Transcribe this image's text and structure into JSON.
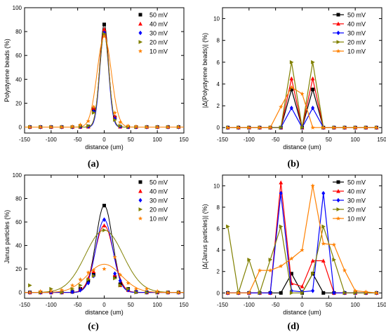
{
  "panels": [
    {
      "caption": "(a)"
    },
    {
      "caption": "(b)"
    },
    {
      "caption": "(c)"
    },
    {
      "caption": "(d)"
    }
  ],
  "chart_data": [
    {
      "type": "scatter",
      "title": "",
      "xlabel": "distance (um)",
      "ylabel": "Polystyrene beads (%)",
      "xlim": [
        -150,
        150
      ],
      "ylim": [
        -5,
        100
      ],
      "xticks": [
        -150,
        -100,
        -50,
        0,
        50,
        100,
        150
      ],
      "yticks": [
        0,
        20,
        40,
        60,
        80,
        100
      ],
      "legend_position": "top-right",
      "fit_lines": true,
      "x": [
        -140,
        -120,
        -100,
        -80,
        -60,
        -45,
        -30,
        -20,
        0,
        20,
        30,
        45,
        60,
        80,
        100,
        120,
        140
      ],
      "series": [
        {
          "name": "50 mV",
          "color": "#000000",
          "marker": "square",
          "values": [
            0,
            0,
            0,
            0,
            0,
            0.2,
            0.5,
            15,
            86,
            8,
            0.3,
            0.1,
            0,
            0,
            0,
            0,
            0
          ]
        },
        {
          "name": "40 mV",
          "color": "#ff0000",
          "marker": "triangle-up",
          "values": [
            0,
            0,
            0,
            0,
            0,
            0.1,
            0.3,
            16,
            82,
            9,
            0.3,
            0.1,
            0,
            0,
            0,
            0,
            0
          ]
        },
        {
          "name": "30 mV",
          "color": "#0000ff",
          "marker": "diamond",
          "values": [
            0,
            0,
            0,
            0,
            0,
            0.2,
            0.5,
            13,
            79,
            7,
            0.5,
            0.1,
            0,
            0,
            0,
            0,
            0
          ]
        },
        {
          "name": "20 mV",
          "color": "#808000",
          "marker": "triangle-right",
          "values": [
            0,
            0,
            0,
            0,
            0,
            0.5,
            1,
            12,
            78,
            6,
            1,
            0.3,
            0,
            0,
            0,
            0,
            0
          ]
        },
        {
          "name": "10 mV",
          "color": "#ff8000",
          "marker": "star",
          "values": [
            0,
            0,
            0,
            0,
            0.5,
            2,
            5,
            17,
            76,
            12,
            4,
            1,
            0.5,
            0,
            0,
            0,
            0
          ]
        }
      ]
    },
    {
      "type": "line",
      "title": "",
      "xlabel": "distance (um)",
      "ylabel": "|Δ(Polystyrene beads)| (%)",
      "xlim": [
        -150,
        150
      ],
      "ylim": [
        -0.5,
        11
      ],
      "xticks": [
        -150,
        -100,
        -50,
        0,
        50,
        100,
        150
      ],
      "yticks": [
        0,
        2,
        4,
        6,
        8,
        10
      ],
      "legend_position": "top-right",
      "x": [
        -140,
        -120,
        -100,
        -80,
        -60,
        -40,
        -20,
        0,
        20,
        40,
        60,
        80,
        100,
        120,
        140
      ],
      "series": [
        {
          "name": "50 mV",
          "color": "#000000",
          "marker": "square",
          "values": [
            0,
            0,
            0,
            0,
            0,
            0,
            3.5,
            0,
            3.5,
            0,
            0,
            0,
            0,
            0,
            0
          ]
        },
        {
          "name": "40 mV",
          "color": "#ff0000",
          "marker": "triangle-up",
          "values": [
            0,
            0,
            0,
            0,
            0,
            0,
            4.5,
            0,
            4.5,
            0,
            0,
            0,
            0,
            0,
            0
          ]
        },
        {
          "name": "30 mV",
          "color": "#0000ff",
          "marker": "diamond",
          "values": [
            0,
            0,
            0,
            0,
            0,
            0,
            1.8,
            0,
            1.8,
            0,
            0,
            0,
            0,
            0,
            0
          ]
        },
        {
          "name": "20 mV",
          "color": "#808000",
          "marker": "triangle-right",
          "values": [
            0,
            0,
            0,
            0,
            0,
            0,
            6,
            0,
            6,
            0,
            0,
            0,
            0,
            0,
            0
          ]
        },
        {
          "name": "10 mV",
          "color": "#ff8000",
          "marker": "star",
          "values": [
            0,
            0,
            0,
            0,
            0,
            1.9,
            3.7,
            3.1,
            0,
            0,
            0,
            0,
            0,
            0,
            0
          ]
        }
      ]
    },
    {
      "type": "scatter",
      "title": "",
      "xlabel": "distance (um)",
      "ylabel": "Janus particles (%)",
      "xlim": [
        -150,
        150
      ],
      "ylim": [
        -5,
        100
      ],
      "xticks": [
        -150,
        -100,
        -50,
        0,
        50,
        100,
        150
      ],
      "yticks": [
        0,
        20,
        40,
        60,
        80,
        100
      ],
      "legend_position": "top-right",
      "fit_lines": true,
      "x": [
        -140,
        -120,
        -100,
        -80,
        -60,
        -45,
        -30,
        -20,
        0,
        20,
        30,
        45,
        60,
        80,
        100,
        120,
        140
      ],
      "series": [
        {
          "name": "50 mV",
          "color": "#000000",
          "marker": "square",
          "values": [
            0,
            0,
            0,
            0,
            0.5,
            3,
            10,
            15,
            74,
            13,
            7,
            3,
            0.5,
            0,
            0,
            0,
            0
          ]
        },
        {
          "name": "40 mV",
          "color": "#ff0000",
          "marker": "triangle-up",
          "values": [
            0,
            0,
            0,
            0,
            1,
            3,
            12,
            18,
            57,
            15,
            6,
            2,
            1,
            0,
            0,
            0,
            0
          ]
        },
        {
          "name": "30 mV",
          "color": "#0000ff",
          "marker": "diamond",
          "values": [
            0,
            0,
            0,
            0,
            0.5,
            2,
            8,
            14,
            62,
            16,
            10,
            2,
            0.5,
            0,
            0,
            0,
            0
          ]
        },
        {
          "name": "20 mV",
          "color": "#808000",
          "marker": "triangle-right",
          "values": [
            6,
            0,
            3,
            0,
            3,
            6,
            11,
            14,
            53,
            12,
            6,
            3,
            0,
            0,
            0,
            0,
            0
          ]
        },
        {
          "name": "10 mV",
          "color": "#ff8000",
          "marker": "star",
          "values": [
            0,
            1,
            1,
            2,
            6,
            11,
            17,
            19,
            20,
            30,
            15,
            8,
            3,
            3,
            1,
            0,
            0
          ]
        }
      ]
    },
    {
      "type": "line",
      "title": "",
      "xlabel": "distance (um)",
      "ylabel": "|Δ(Janus particles)| (%)",
      "xlim": [
        -150,
        150
      ],
      "ylim": [
        -0.5,
        11
      ],
      "xticks": [
        -150,
        -100,
        -50,
        0,
        50,
        100,
        150
      ],
      "yticks": [
        0,
        2,
        4,
        6,
        8,
        10
      ],
      "legend_position": "top-right",
      "x": [
        -140,
        -120,
        -100,
        -80,
        -60,
        -40,
        -20,
        0,
        20,
        40,
        60,
        80,
        100,
        120,
        140
      ],
      "series": [
        {
          "name": "50 mV",
          "color": "#000000",
          "marker": "square",
          "values": [
            0,
            0,
            0,
            0,
            0,
            0,
            1.8,
            0,
            1.8,
            0,
            0,
            0,
            0,
            0,
            0
          ]
        },
        {
          "name": "40 mV",
          "color": "#ff0000",
          "marker": "triangle-up",
          "values": [
            0,
            0,
            0,
            0,
            0,
            10.3,
            0.9,
            0.6,
            3,
            3,
            0,
            0,
            0,
            0,
            0
          ]
        },
        {
          "name": "30 mV",
          "color": "#0000ff",
          "marker": "diamond",
          "values": [
            0,
            0,
            0,
            0,
            0,
            9.3,
            0.2,
            0.1,
            0.2,
            9.3,
            0,
            0,
            0,
            0,
            0
          ]
        },
        {
          "name": "20 mV",
          "color": "#808000",
          "marker": "triangle-right",
          "values": [
            6.2,
            0,
            3.1,
            0,
            3.1,
            6.2,
            0,
            0,
            1.8,
            6.2,
            3.1,
            0,
            0,
            0,
            0
          ]
        },
        {
          "name": "10 mV",
          "color": "#ff8000",
          "marker": "star",
          "values": [
            0,
            0,
            0,
            2.1,
            2.1,
            2.5,
            3.2,
            4,
            10,
            4.6,
            4.5,
            2.1,
            0.2,
            0.1,
            0
          ]
        }
      ]
    }
  ]
}
